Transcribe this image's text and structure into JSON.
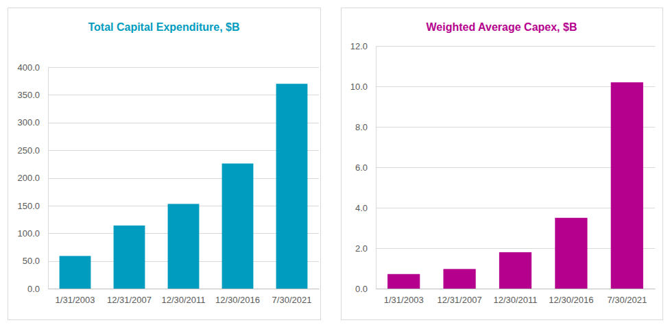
{
  "chart_data": [
    {
      "type": "bar",
      "title": "Total Capital Expenditure, $B",
      "categories": [
        "1/31/2003",
        "12/31/2007",
        "12/30/2011",
        "12/30/2016",
        "7/30/2021"
      ],
      "values": [
        59,
        114,
        153,
        226,
        370
      ],
      "color": "#009cc0",
      "ylim": [
        0,
        400
      ],
      "yticks": [
        {
          "value": 0,
          "label": "0.0"
        },
        {
          "value": 50,
          "label": "50.0"
        },
        {
          "value": 100,
          "label": "100.0"
        },
        {
          "value": 150,
          "label": "150.0"
        },
        {
          "value": 200,
          "label": "200.0"
        },
        {
          "value": 250,
          "label": "250.0"
        },
        {
          "value": 300,
          "label": "300.0"
        },
        {
          "value": 350,
          "label": "350.0"
        },
        {
          "value": 400,
          "label": "400.0"
        }
      ],
      "grid": true
    },
    {
      "type": "bar",
      "title": "Weighted Average Capex, $B",
      "categories": [
        "1/31/2003",
        "12/31/2007",
        "12/30/2011",
        "12/30/2016",
        "7/30/2021"
      ],
      "values": [
        0.72,
        0.97,
        1.8,
        3.5,
        10.2
      ],
      "color": "#b5008e",
      "ylim": [
        0,
        12
      ],
      "yticks": [
        {
          "value": 0,
          "label": "0.0"
        },
        {
          "value": 2,
          "label": "2.0"
        },
        {
          "value": 4,
          "label": "4.0"
        },
        {
          "value": 6,
          "label": "6.0"
        },
        {
          "value": 8,
          "label": "8.0"
        },
        {
          "value": 10,
          "label": "10.0"
        },
        {
          "value": 12,
          "label": "12.0"
        }
      ],
      "grid": true
    }
  ]
}
